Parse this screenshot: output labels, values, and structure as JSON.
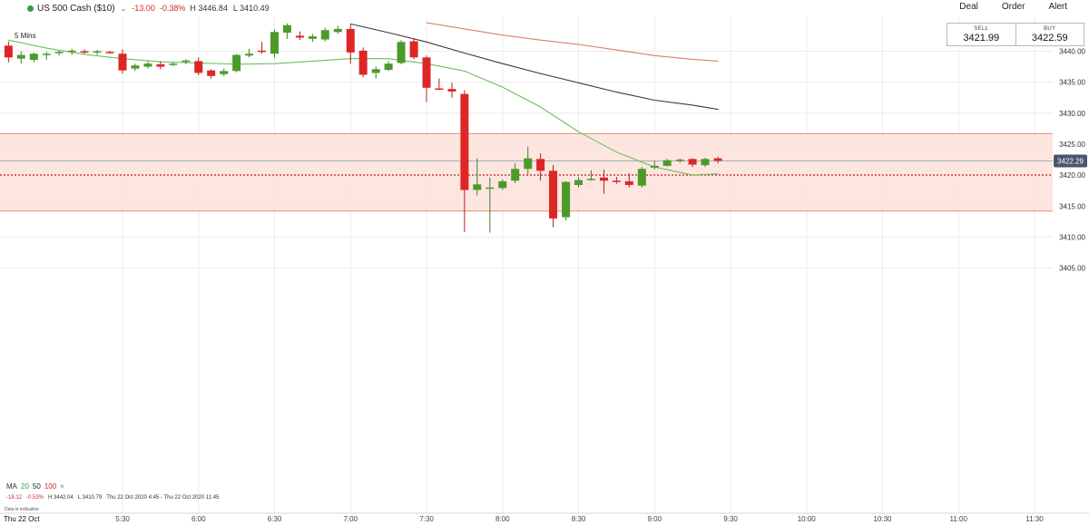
{
  "header": {
    "instrument": "US 500 Cash ($10)",
    "change": "-13.00",
    "change_pct": "-0.38%",
    "high": "H 3446.84",
    "low": "L 3410.49",
    "menu": [
      "Deal",
      "Order",
      "Alert"
    ]
  },
  "timeframe": "5 Mins",
  "quote": {
    "sell_label": "SELL",
    "sell": "3421.99",
    "buy_label": "BUY",
    "buy": "3422.59"
  },
  "indicator": {
    "ma_label": "MA",
    "periods": [
      "20",
      "50",
      "100"
    ],
    "ohlc": {
      "change": "-18.12",
      "change_pct": "-0.53%",
      "high": "H 3442.04",
      "low": "L 3410.79",
      "range": "Thu 22 Oct 2020 4:45 - Thu 22 Oct 2020 11:45"
    },
    "note": "Data is indicative"
  },
  "colors": {
    "up": "#4c9a2a",
    "down": "#dd2626",
    "ma20": "#6cbf5c",
    "ma50": "#3a3a3a",
    "ma100": "#e07a6e",
    "zone": "#fde2da",
    "zone_line": "#ef8a78",
    "current_price": "#4a5570"
  },
  "chart_data": {
    "type": "candlestick",
    "y_ticks": [
      "3440.00",
      "3435.00",
      "3430.00",
      "3425.00",
      "3420.00",
      "3415.00",
      "3410.00",
      "3405.00"
    ],
    "y_tick_values": [
      3440,
      3435,
      3430,
      3425,
      3420,
      3415,
      3410,
      3405
    ],
    "x_ticks": [
      "Thu 22 Oct",
      "5:30",
      "6:00",
      "6:30",
      "7:00",
      "7:30",
      "8:00",
      "8:30",
      "9:00",
      "9:30",
      "10:00",
      "10:30",
      "11:00",
      "11:30"
    ],
    "x_tick_times": [
      4.9,
      5.5,
      6.0,
      6.5,
      7.0,
      7.5,
      8.0,
      8.5,
      9.0,
      9.5,
      10.0,
      10.5,
      11.0,
      11.5
    ],
    "current_price": "3422.29",
    "current_price_value": 3422.29,
    "dotted_level": 3420.0,
    "zone": [
      3414.2,
      3426.7
    ],
    "candles": [
      {
        "t": 4.75,
        "o": 3440.9,
        "h": 3441.6,
        "l": 3438.2,
        "c": 3439.0
      },
      {
        "t": 4.833,
        "o": 3438.8,
        "h": 3440.0,
        "l": 3438.0,
        "c": 3439.4
      },
      {
        "t": 4.917,
        "o": 3438.6,
        "h": 3439.8,
        "l": 3438.2,
        "c": 3439.6
      },
      {
        "t": 5.0,
        "o": 3439.4,
        "h": 3439.9,
        "l": 3438.6,
        "c": 3439.6
      },
      {
        "t": 5.083,
        "o": 3439.7,
        "h": 3440.1,
        "l": 3439.3,
        "c": 3439.9
      },
      {
        "t": 5.167,
        "o": 3439.9,
        "h": 3440.4,
        "l": 3439.4,
        "c": 3440.1
      },
      {
        "t": 5.25,
        "o": 3440.0,
        "h": 3440.3,
        "l": 3439.6,
        "c": 3439.8
      },
      {
        "t": 5.333,
        "o": 3439.8,
        "h": 3440.2,
        "l": 3439.4,
        "c": 3440.0
      },
      {
        "t": 5.417,
        "o": 3439.9,
        "h": 3440.1,
        "l": 3439.6,
        "c": 3439.7
      },
      {
        "t": 5.5,
        "o": 3439.6,
        "h": 3440.3,
        "l": 3436.4,
        "c": 3436.9
      },
      {
        "t": 5.583,
        "o": 3437.2,
        "h": 3438.0,
        "l": 3436.8,
        "c": 3437.7
      },
      {
        "t": 5.667,
        "o": 3437.5,
        "h": 3438.4,
        "l": 3437.2,
        "c": 3438.0
      },
      {
        "t": 5.75,
        "o": 3437.9,
        "h": 3438.4,
        "l": 3437.1,
        "c": 3437.5
      },
      {
        "t": 5.833,
        "o": 3437.8,
        "h": 3438.2,
        "l": 3437.6,
        "c": 3438.0
      },
      {
        "t": 5.917,
        "o": 3438.3,
        "h": 3438.7,
        "l": 3437.9,
        "c": 3438.5
      },
      {
        "t": 6.0,
        "o": 3438.4,
        "h": 3439.0,
        "l": 3436.1,
        "c": 3436.5
      },
      {
        "t": 6.083,
        "o": 3436.9,
        "h": 3437.1,
        "l": 3435.6,
        "c": 3436.0
      },
      {
        "t": 6.167,
        "o": 3436.3,
        "h": 3437.2,
        "l": 3436.0,
        "c": 3436.8
      },
      {
        "t": 6.25,
        "o": 3436.8,
        "h": 3439.6,
        "l": 3436.6,
        "c": 3439.4
      },
      {
        "t": 6.333,
        "o": 3439.3,
        "h": 3440.4,
        "l": 3439.0,
        "c": 3439.6
      },
      {
        "t": 6.417,
        "o": 3440.1,
        "h": 3441.5,
        "l": 3439.6,
        "c": 3440.0
      },
      {
        "t": 6.5,
        "o": 3439.6,
        "h": 3443.5,
        "l": 3439.0,
        "c": 3443.1
      },
      {
        "t": 6.583,
        "o": 3443.0,
        "h": 3444.5,
        "l": 3442.0,
        "c": 3444.2
      },
      {
        "t": 6.667,
        "o": 3442.5,
        "h": 3443.2,
        "l": 3441.8,
        "c": 3442.2
      },
      {
        "t": 6.75,
        "o": 3442.0,
        "h": 3442.8,
        "l": 3441.5,
        "c": 3442.4
      },
      {
        "t": 6.833,
        "o": 3441.9,
        "h": 3443.8,
        "l": 3441.6,
        "c": 3443.4
      },
      {
        "t": 6.917,
        "o": 3443.1,
        "h": 3444.1,
        "l": 3442.8,
        "c": 3443.6
      },
      {
        "t": 7.0,
        "o": 3443.6,
        "h": 3444.4,
        "l": 3438.0,
        "c": 3439.8
      },
      {
        "t": 7.083,
        "o": 3440.1,
        "h": 3440.6,
        "l": 3435.8,
        "c": 3436.2
      },
      {
        "t": 7.167,
        "o": 3436.5,
        "h": 3437.5,
        "l": 3435.6,
        "c": 3437.1
      },
      {
        "t": 7.25,
        "o": 3437.0,
        "h": 3438.4,
        "l": 3436.8,
        "c": 3438.0
      },
      {
        "t": 7.333,
        "o": 3438.1,
        "h": 3441.8,
        "l": 3437.9,
        "c": 3441.5
      },
      {
        "t": 7.417,
        "o": 3441.6,
        "h": 3442.1,
        "l": 3438.7,
        "c": 3439.0
      },
      {
        "t": 7.5,
        "o": 3439.0,
        "h": 3439.3,
        "l": 3431.8,
        "c": 3434.1
      },
      {
        "t": 7.583,
        "o": 3434.0,
        "h": 3435.6,
        "l": 3433.8,
        "c": 3433.9
      },
      {
        "t": 7.667,
        "o": 3433.9,
        "h": 3434.9,
        "l": 3432.5,
        "c": 3433.5
      },
      {
        "t": 7.75,
        "o": 3433.1,
        "h": 3433.7,
        "l": 3410.8,
        "c": 3417.6
      },
      {
        "t": 7.833,
        "o": 3417.6,
        "h": 3422.7,
        "l": 3416.7,
        "c": 3418.5
      },
      {
        "t": 7.917,
        "o": 3417.9,
        "h": 3419.6,
        "l": 3410.7,
        "c": 3418.0
      },
      {
        "t": 8.0,
        "o": 3417.9,
        "h": 3419.3,
        "l": 3417.6,
        "c": 3419.0
      },
      {
        "t": 8.083,
        "o": 3419.1,
        "h": 3421.9,
        "l": 3418.7,
        "c": 3421.0
      },
      {
        "t": 8.167,
        "o": 3421.0,
        "h": 3424.6,
        "l": 3420.1,
        "c": 3422.7
      },
      {
        "t": 8.25,
        "o": 3422.6,
        "h": 3423.5,
        "l": 3419.1,
        "c": 3420.7
      },
      {
        "t": 8.333,
        "o": 3420.7,
        "h": 3421.6,
        "l": 3411.6,
        "c": 3413.0
      },
      {
        "t": 8.417,
        "o": 3413.2,
        "h": 3419.0,
        "l": 3412.7,
        "c": 3418.9
      },
      {
        "t": 8.5,
        "o": 3418.4,
        "h": 3419.7,
        "l": 3418.0,
        "c": 3419.2
      },
      {
        "t": 8.583,
        "o": 3419.3,
        "h": 3420.8,
        "l": 3419.1,
        "c": 3419.4
      },
      {
        "t": 8.667,
        "o": 3419.6,
        "h": 3420.9,
        "l": 3417.0,
        "c": 3419.1
      },
      {
        "t": 8.75,
        "o": 3419.1,
        "h": 3419.7,
        "l": 3418.6,
        "c": 3418.9
      },
      {
        "t": 8.833,
        "o": 3419.0,
        "h": 3420.3,
        "l": 3418.0,
        "c": 3418.4
      },
      {
        "t": 8.917,
        "o": 3418.3,
        "h": 3421.3,
        "l": 3418.0,
        "c": 3421.0
      },
      {
        "t": 9.0,
        "o": 3421.2,
        "h": 3422.3,
        "l": 3420.9,
        "c": 3421.5
      },
      {
        "t": 9.083,
        "o": 3421.5,
        "h": 3422.6,
        "l": 3421.4,
        "c": 3422.4
      },
      {
        "t": 9.167,
        "o": 3422.4,
        "h": 3422.7,
        "l": 3422.0,
        "c": 3422.5
      },
      {
        "t": 9.25,
        "o": 3422.6,
        "h": 3422.7,
        "l": 3421.3,
        "c": 3421.7
      },
      {
        "t": 9.333,
        "o": 3421.6,
        "h": 3422.8,
        "l": 3421.3,
        "c": 3422.6
      },
      {
        "t": 9.417,
        "o": 3422.7,
        "h": 3423.0,
        "l": 3421.9,
        "c": 3422.3
      }
    ],
    "ma20": [
      [
        4.75,
        3441.8
      ],
      [
        5.0,
        3440.5
      ],
      [
        5.25,
        3439.5
      ],
      [
        5.5,
        3438.8
      ],
      [
        5.75,
        3438.3
      ],
      [
        6.0,
        3438.1
      ],
      [
        6.25,
        3437.9
      ],
      [
        6.5,
        3438.0
      ],
      [
        6.75,
        3438.4
      ],
      [
        7.0,
        3438.8
      ],
      [
        7.25,
        3438.8
      ],
      [
        7.5,
        3438.0
      ],
      [
        7.75,
        3436.8
      ],
      [
        8.0,
        3434.2
      ],
      [
        8.25,
        3431.0
      ],
      [
        8.5,
        3427.0
      ],
      [
        8.75,
        3423.7
      ],
      [
        9.0,
        3421.3
      ],
      [
        9.25,
        3420.0
      ],
      [
        9.42,
        3420.2
      ]
    ],
    "ma50": [
      [
        7.0,
        3444.4
      ],
      [
        7.25,
        3443.0
      ],
      [
        7.5,
        3441.5
      ],
      [
        7.75,
        3439.7
      ],
      [
        8.0,
        3438.0
      ],
      [
        8.25,
        3436.4
      ],
      [
        8.5,
        3434.9
      ],
      [
        8.75,
        3433.4
      ],
      [
        9.0,
        3432.1
      ],
      [
        9.25,
        3431.3
      ],
      [
        9.42,
        3430.6
      ]
    ],
    "ma100": [
      [
        7.5,
        3444.6
      ],
      [
        7.75,
        3443.6
      ],
      [
        8.0,
        3442.6
      ],
      [
        8.25,
        3441.8
      ],
      [
        8.5,
        3441.1
      ],
      [
        8.75,
        3440.2
      ],
      [
        9.0,
        3439.3
      ],
      [
        9.25,
        3438.7
      ],
      [
        9.42,
        3438.4
      ]
    ]
  }
}
